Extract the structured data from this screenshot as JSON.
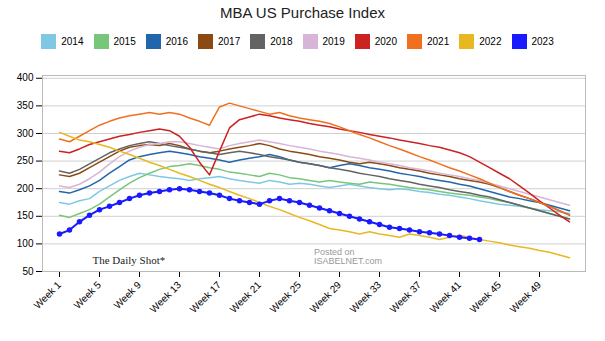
{
  "chart_data": {
    "type": "line",
    "title": "MBA US Purchase Index",
    "categories": [
      "Week 1",
      null,
      null,
      null,
      "Week 5",
      null,
      null,
      null,
      "Week 9",
      null,
      null,
      null,
      "Week 13",
      null,
      null,
      null,
      "Week 17",
      null,
      null,
      null,
      "Week 21",
      null,
      null,
      null,
      "Week 25",
      null,
      null,
      null,
      "Week 29",
      null,
      null,
      null,
      "Week 33",
      null,
      null,
      null,
      "Week 37",
      null,
      null,
      null,
      "Week 41",
      null,
      null,
      null,
      "Week 45",
      null,
      null,
      null,
      "Week 49",
      null,
      null,
      null
    ],
    "series": [
      {
        "name": "2014",
        "color": "#7ec8e3",
        "values": [
          175,
          172,
          178,
          182,
          195,
          205,
          215,
          222,
          228,
          225,
          222,
          220,
          218,
          215,
          218,
          220,
          222,
          218,
          215,
          212,
          210,
          215,
          212,
          208,
          210,
          208,
          205,
          202,
          205,
          208,
          205,
          202,
          200,
          198,
          200,
          198,
          195,
          193,
          190,
          188,
          185,
          182,
          178,
          175,
          172,
          170,
          168,
          165,
          162,
          160,
          158,
          155
        ]
      },
      {
        "name": "2015",
        "color": "#78c679",
        "values": [
          152,
          148,
          155,
          162,
          172,
          185,
          198,
          210,
          220,
          228,
          235,
          240,
          242,
          245,
          242,
          238,
          235,
          230,
          228,
          225,
          222,
          228,
          225,
          220,
          218,
          215,
          212,
          215,
          212,
          210,
          208,
          212,
          210,
          208,
          205,
          202,
          200,
          198,
          195,
          192,
          190,
          188,
          185,
          182,
          178,
          175,
          170,
          165,
          160,
          155,
          150,
          145
        ]
      },
      {
        "name": "2016",
        "color": "#2166ac",
        "values": [
          195,
          192,
          198,
          205,
          215,
          228,
          240,
          252,
          258,
          262,
          265,
          268,
          265,
          262,
          258,
          255,
          252,
          248,
          252,
          255,
          258,
          262,
          258,
          252,
          248,
          245,
          242,
          238,
          242,
          245,
          242,
          238,
          235,
          232,
          228,
          225,
          222,
          218,
          215,
          212,
          208,
          205,
          200,
          195,
          190,
          185,
          182,
          178,
          175,
          170,
          165,
          160
        ]
      },
      {
        "name": "2017",
        "color": "#8c4a13",
        "values": [
          225,
          222,
          228,
          238,
          248,
          258,
          268,
          275,
          278,
          280,
          278,
          282,
          278,
          272,
          268,
          265,
          268,
          272,
          275,
          278,
          282,
          278,
          272,
          268,
          265,
          262,
          258,
          255,
          252,
          248,
          245,
          248,
          245,
          242,
          238,
          235,
          232,
          228,
          225,
          222,
          218,
          215,
          212,
          208,
          202,
          195,
          188,
          182,
          175,
          168,
          160,
          152
        ]
      },
      {
        "name": "2018",
        "color": "#636363",
        "values": [
          232,
          228,
          235,
          245,
          255,
          265,
          272,
          278,
          282,
          285,
          282,
          278,
          275,
          272,
          268,
          265,
          262,
          265,
          268,
          265,
          262,
          258,
          255,
          252,
          248,
          245,
          242,
          238,
          235,
          232,
          228,
          225,
          222,
          218,
          215,
          212,
          208,
          205,
          202,
          198,
          195,
          192,
          188,
          185,
          180,
          175,
          170,
          165,
          160,
          155,
          150,
          145
        ]
      },
      {
        "name": "2019",
        "color": "#d8b4d8",
        "values": [
          205,
          202,
          208,
          218,
          230,
          245,
          258,
          268,
          275,
          280,
          282,
          285,
          285,
          282,
          278,
          275,
          272,
          278,
          282,
          285,
          288,
          285,
          282,
          278,
          275,
          272,
          268,
          265,
          262,
          258,
          255,
          252,
          248,
          245,
          242,
          238,
          235,
          232,
          228,
          225,
          222,
          218,
          215,
          210,
          205,
          200,
          195,
          190,
          185,
          180,
          175,
          170
        ]
      },
      {
        "name": "2020",
        "color": "#cc2222",
        "values": [
          268,
          265,
          272,
          280,
          285,
          290,
          295,
          298,
          302,
          305,
          308,
          305,
          295,
          275,
          248,
          225,
          268,
          310,
          325,
          330,
          335,
          332,
          328,
          325,
          322,
          318,
          315,
          312,
          308,
          305,
          302,
          298,
          295,
          292,
          288,
          285,
          282,
          278,
          275,
          270,
          265,
          258,
          248,
          238,
          228,
          218,
          205,
          192,
          178,
          165,
          152,
          140
        ]
      },
      {
        "name": "2021",
        "color": "#f07020",
        "values": [
          290,
          285,
          295,
          305,
          315,
          322,
          328,
          332,
          335,
          338,
          335,
          338,
          335,
          328,
          322,
          315,
          348,
          355,
          350,
          345,
          340,
          335,
          338,
          332,
          328,
          325,
          322,
          318,
          312,
          305,
          298,
          292,
          285,
          278,
          272,
          265,
          258,
          252,
          245,
          238,
          232,
          225,
          218,
          210,
          202,
          195,
          188,
          182,
          175,
          168,
          160,
          152
        ]
      },
      {
        "name": "2022",
        "color": "#e8b820",
        "values": [
          302,
          295,
          288,
          285,
          280,
          275,
          268,
          262,
          255,
          248,
          242,
          235,
          228,
          222,
          215,
          208,
          202,
          195,
          188,
          182,
          175,
          168,
          162,
          155,
          148,
          142,
          135,
          128,
          125,
          122,
          118,
          122,
          118,
          115,
          112,
          118,
          115,
          112,
          108,
          112,
          115,
          112,
          108,
          105,
          102,
          98,
          95,
          92,
          88,
          85,
          80,
          75
        ]
      },
      {
        "name": "2023",
        "color": "#1a1aff",
        "marker": "circle",
        "values": [
          118,
          125,
          140,
          152,
          162,
          168,
          175,
          182,
          188,
          192,
          195,
          198,
          200,
          198,
          195,
          192,
          188,
          182,
          178,
          175,
          172,
          178,
          182,
          178,
          175,
          170,
          165,
          160,
          155,
          150,
          145,
          140,
          135,
          130,
          128,
          125,
          122,
          120,
          118,
          115,
          112,
          110,
          108,
          null,
          null,
          null,
          null,
          null,
          null,
          null,
          null,
          null
        ]
      }
    ],
    "ylim": [
      50,
      405
    ],
    "yticks": [
      50,
      100,
      150,
      200,
      250,
      300,
      350,
      400
    ],
    "grid": true,
    "legend": "top",
    "annotations": [
      "The Daily Shot*",
      "Posted on\nISABELNET.com"
    ]
  }
}
